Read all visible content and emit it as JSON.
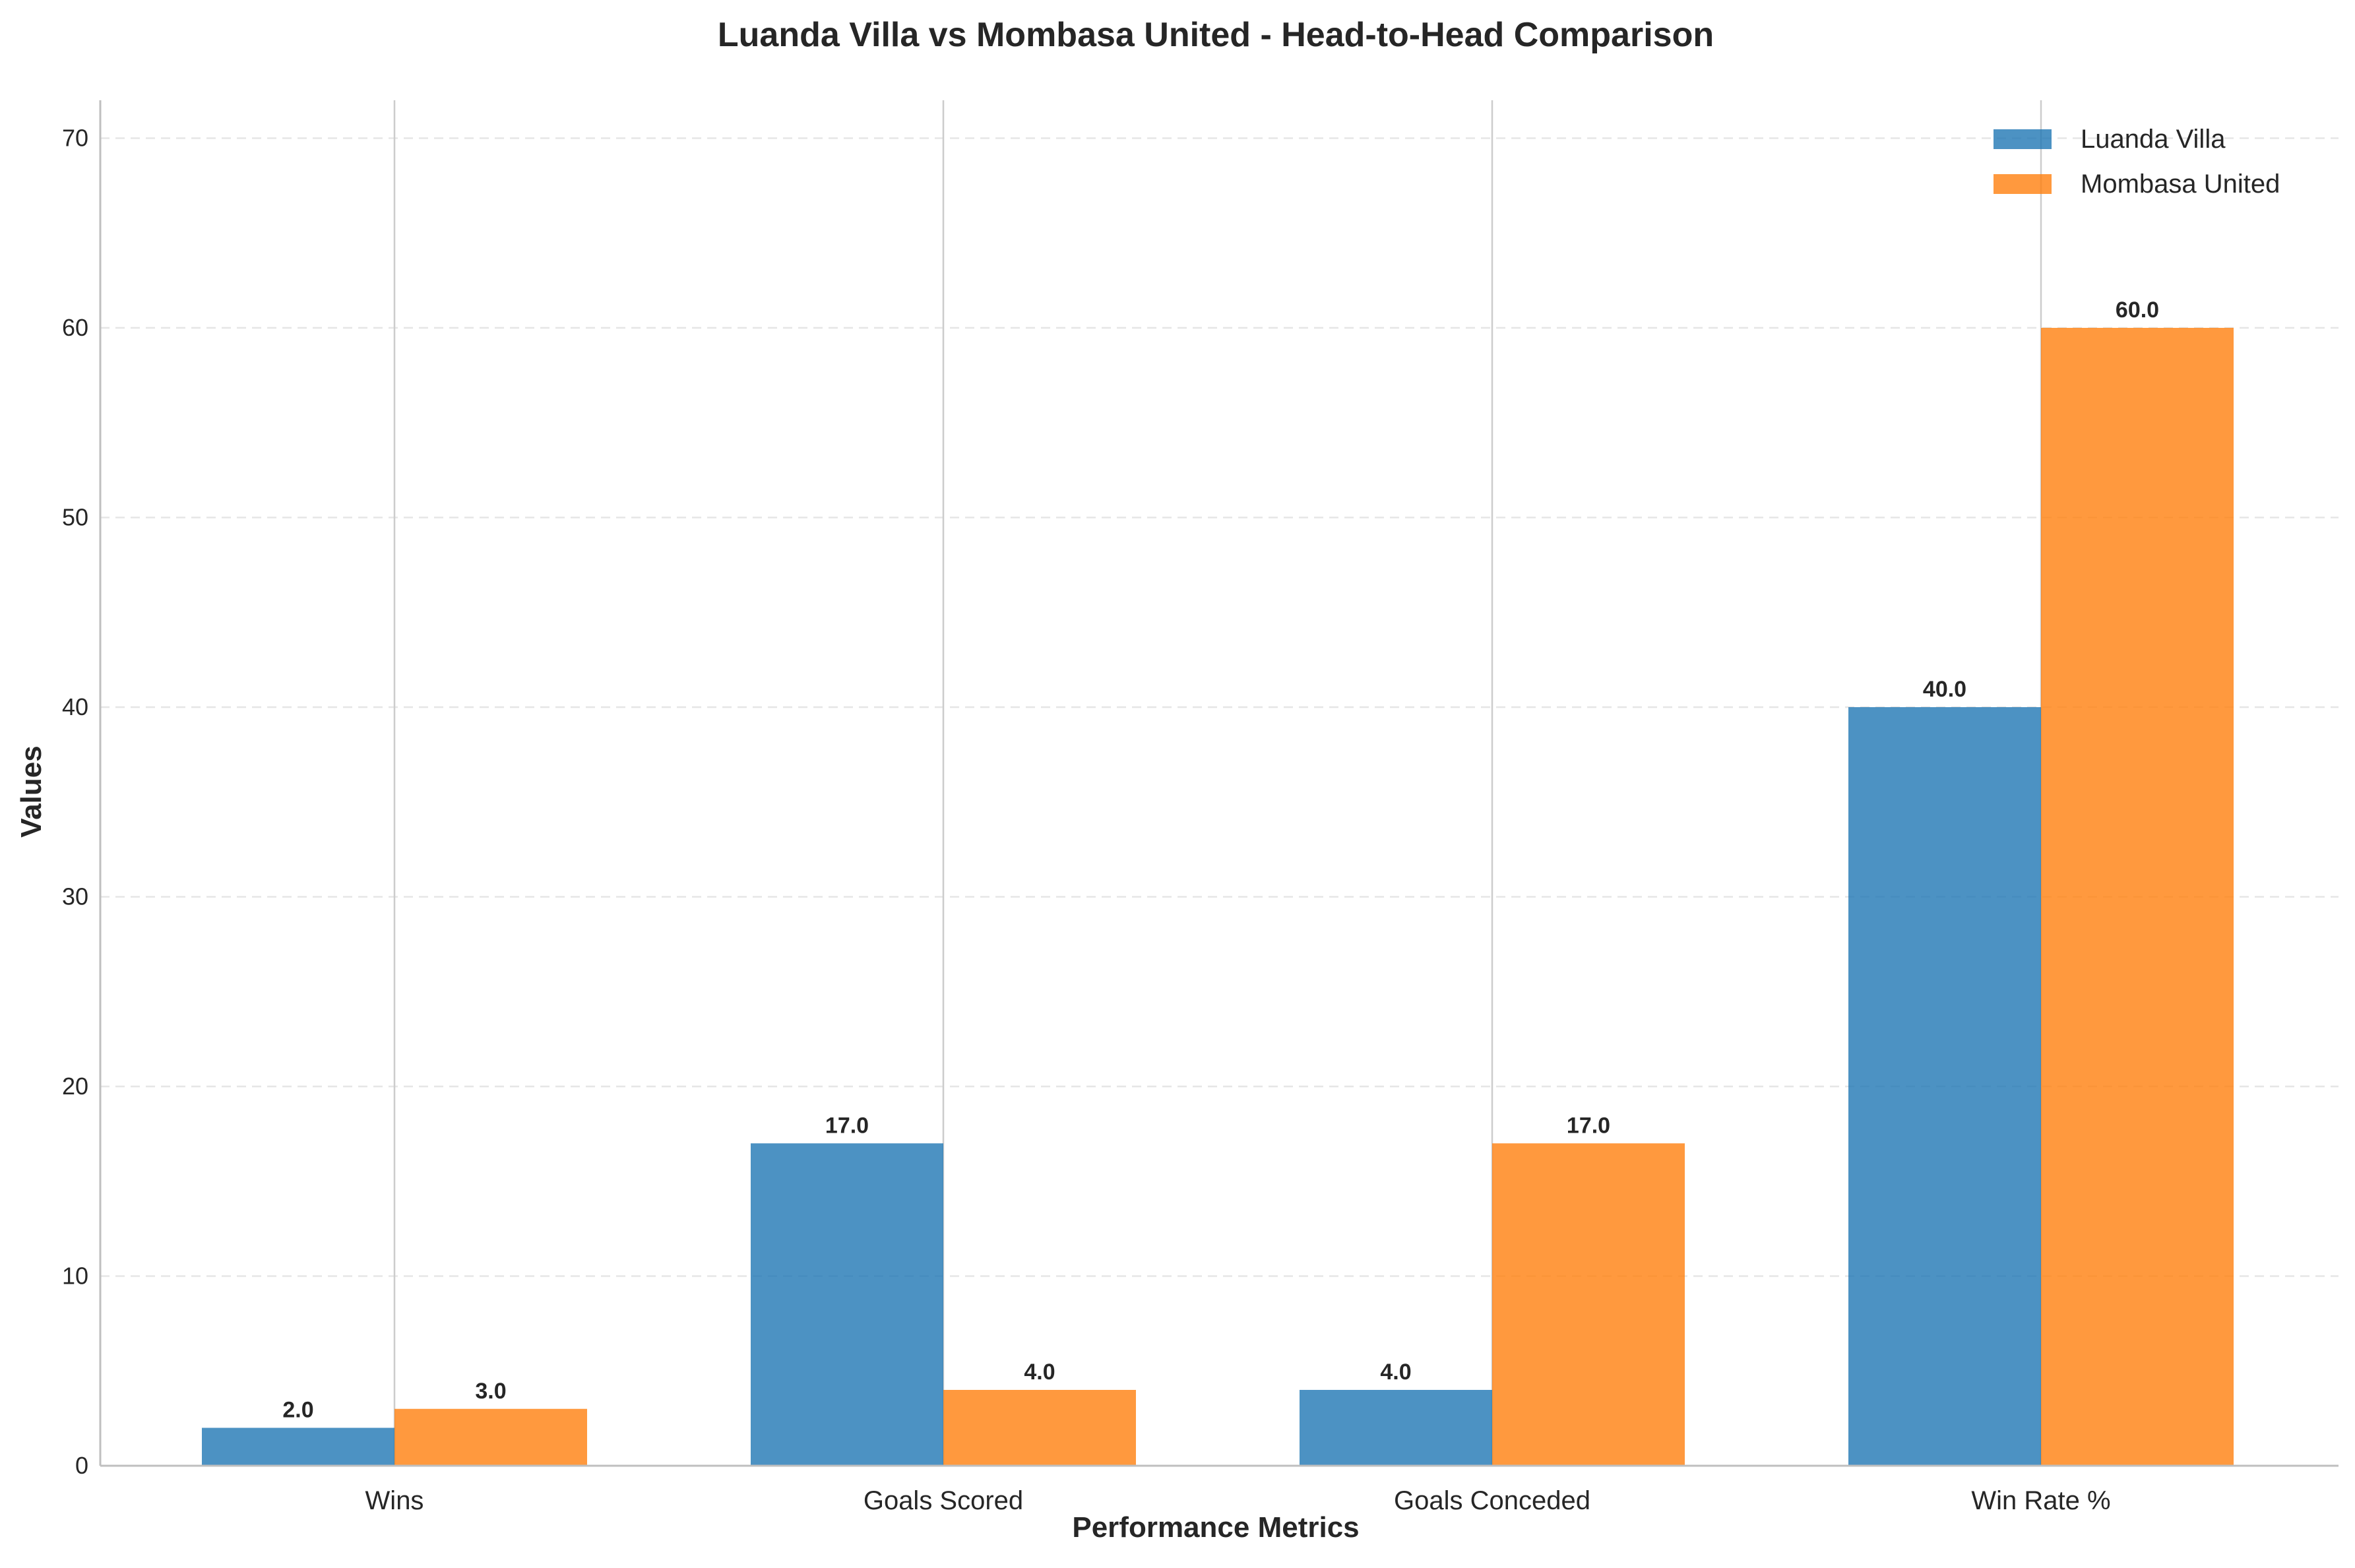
{
  "chart_data": {
    "type": "bar",
    "title": "Luanda Villa vs Mombasa United - Head-to-Head Comparison",
    "xlabel": "Performance Metrics",
    "ylabel": "Values",
    "categories": [
      "Wins",
      "Goals Scored",
      "Goals Conceded",
      "Win Rate %"
    ],
    "series": [
      {
        "name": "Luanda Villa",
        "values": [
          2.0,
          17.0,
          4.0,
          40.0
        ],
        "color": "#1f77b4"
      },
      {
        "name": "Mombasa United",
        "values": [
          3.0,
          4.0,
          17.0,
          60.0
        ],
        "color": "#ff7f0e"
      }
    ],
    "value_labels": [
      [
        "2.0",
        "17.0",
        "4.0",
        "40.0"
      ],
      [
        "3.0",
        "4.0",
        "17.0",
        "60.0"
      ]
    ],
    "ylim": [
      0,
      72
    ],
    "yticks": [
      0,
      10,
      20,
      30,
      40,
      50,
      60,
      70
    ],
    "ytick_labels": [
      "0",
      "10",
      "20",
      "30",
      "40",
      "50",
      "60",
      "70"
    ],
    "grid": "y-dashed",
    "legend": "top-right"
  }
}
